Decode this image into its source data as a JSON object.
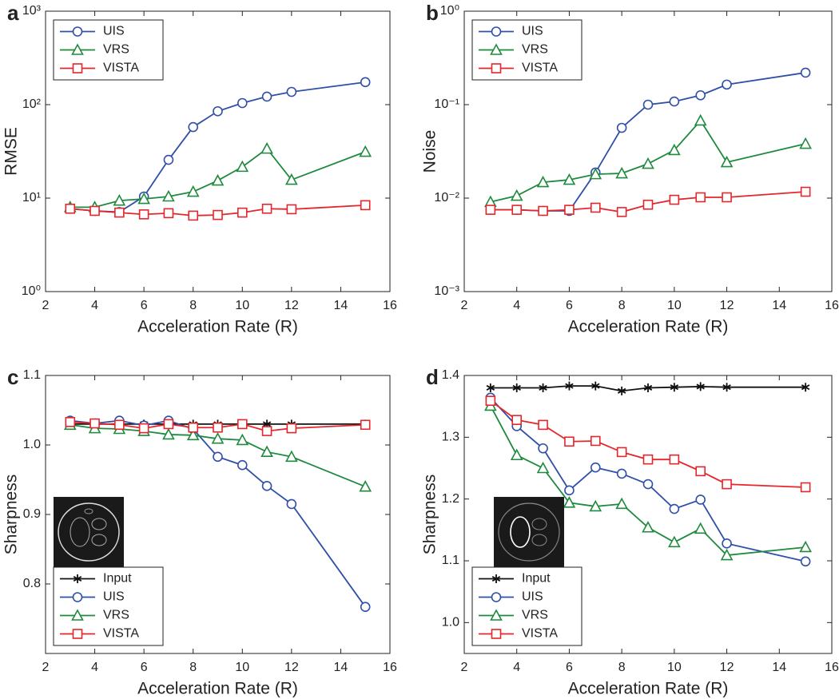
{
  "chart_data": [
    {
      "type": "line",
      "label": "a",
      "xlabel": "Acceleration Rate (R)",
      "ylabel": "RMSE",
      "log_y": true,
      "legend": "upper left",
      "x": [
        3,
        4,
        5,
        6,
        7,
        8,
        9,
        10,
        11,
        12,
        15
      ],
      "xlim": [
        2,
        16
      ],
      "xticks": [
        2,
        4,
        6,
        8,
        10,
        12,
        14,
        16
      ],
      "ylim": [
        1,
        1000
      ],
      "yticks": [
        {
          "value": 1,
          "label": "10⁰"
        },
        {
          "value": 10,
          "label": "10¹"
        },
        {
          "value": 100,
          "label": "10²"
        },
        {
          "value": 1000,
          "label": "10³"
        }
      ],
      "series": [
        {
          "name": "UIS",
          "color": "#2f4fa8",
          "marker": "circle",
          "values": [
            7.7,
            7.3,
            7.1,
            10.4,
            25.7,
            57.6,
            85,
            104,
            122,
            137,
            174
          ]
        },
        {
          "name": "VRS",
          "color": "#1e8a3e",
          "marker": "triangle",
          "values": [
            8.0,
            8.0,
            9.4,
            9.8,
            10.4,
            11.7,
            15.4,
            21.6,
            33.8,
            15.7,
            31.3
          ]
        },
        {
          "name": "VISTA",
          "color": "#e5262b",
          "marker": "square",
          "values": [
            7.7,
            7.3,
            7.0,
            6.7,
            6.9,
            6.5,
            6.6,
            7.0,
            7.7,
            7.6,
            8.4
          ]
        }
      ]
    },
    {
      "type": "line",
      "label": "b",
      "xlabel": "Acceleration Rate (R)",
      "ylabel": "Noise",
      "log_y": true,
      "legend": "upper left",
      "x": [
        3,
        4,
        5,
        6,
        7,
        8,
        9,
        10,
        11,
        12,
        15
      ],
      "xlim": [
        2,
        16
      ],
      "xticks": [
        2,
        4,
        6,
        8,
        10,
        12,
        14,
        16
      ],
      "ylim": [
        0.001,
        1
      ],
      "yticks": [
        {
          "value": 0.001,
          "label": "10⁻³"
        },
        {
          "value": 0.01,
          "label": "10⁻²"
        },
        {
          "value": 0.1,
          "label": "10⁻¹"
        },
        {
          "value": 1,
          "label": "10⁰"
        }
      ],
      "series": [
        {
          "name": "UIS",
          "color": "#2f4fa8",
          "marker": "circle",
          "values": [
            0.0075,
            0.0075,
            0.0073,
            0.0073,
            0.0188,
            0.0565,
            0.1,
            0.108,
            0.126,
            0.164,
            0.22
          ]
        },
        {
          "name": "VRS",
          "color": "#1e8a3e",
          "marker": "triangle",
          "values": [
            0.0091,
            0.0106,
            0.0148,
            0.0157,
            0.018,
            0.0184,
            0.0233,
            0.0326,
            0.0675,
            0.0242,
            0.0381
          ]
        },
        {
          "name": "VISTA",
          "color": "#e5262b",
          "marker": "square",
          "values": [
            0.0075,
            0.0075,
            0.0073,
            0.0075,
            0.0079,
            0.0071,
            0.0085,
            0.0096,
            0.0102,
            0.0102,
            0.0117
          ]
        }
      ]
    },
    {
      "type": "line",
      "label": "c",
      "xlabel": "Acceleration Rate (R)",
      "ylabel": "Sharpness",
      "log_y": false,
      "legend": "lower left",
      "x": [
        3,
        4,
        5,
        6,
        7,
        8,
        9,
        10,
        11,
        12,
        15
      ],
      "xlim": [
        2,
        16
      ],
      "xticks": [
        2,
        4,
        6,
        8,
        10,
        12,
        14,
        16
      ],
      "ylim": [
        0.7,
        1.1
      ],
      "yticks": [
        0.8,
        0.9,
        {
          "value": 1.0,
          "label": "1.0"
        },
        1.1
      ],
      "series": [
        {
          "name": "Input",
          "color": "#111111",
          "marker": "star",
          "values": [
            1.03,
            1.03,
            1.03,
            1.03,
            1.03,
            1.03,
            1.03,
            1.03,
            1.03,
            1.03,
            1.03
          ]
        },
        {
          "name": "UIS",
          "color": "#2f4fa8",
          "marker": "circle",
          "values": [
            1.035,
            1.031,
            1.035,
            1.028,
            1.035,
            1.023,
            0.983,
            0.971,
            0.941,
            0.915,
            0.767
          ]
        },
        {
          "name": "VRS",
          "color": "#1e8a3e",
          "marker": "triangle",
          "values": [
            1.029,
            1.024,
            1.023,
            1.02,
            1.015,
            1.014,
            1.009,
            1.007,
            0.99,
            0.983,
            0.94
          ]
        },
        {
          "name": "VISTA",
          "color": "#e5262b",
          "marker": "square",
          "values": [
            1.033,
            1.031,
            1.029,
            1.024,
            1.03,
            1.025,
            1.025,
            1.03,
            1.02,
            1.024,
            1.029
          ]
        }
      ]
    },
    {
      "type": "line",
      "label": "d",
      "xlabel": "Acceleration Rate (R)",
      "ylabel": "Sharpness",
      "log_y": false,
      "legend": "lower left",
      "x": [
        3,
        4,
        5,
        6,
        7,
        8,
        9,
        10,
        11,
        12,
        15
      ],
      "xlim": [
        2,
        16
      ],
      "xticks": [
        2,
        4,
        6,
        8,
        10,
        12,
        14,
        16
      ],
      "ylim": [
        0.95,
        1.4
      ],
      "yticks": [
        {
          "value": 1.0,
          "label": "1.0"
        },
        1.1,
        1.2,
        1.3,
        1.4
      ],
      "series": [
        {
          "name": "Input",
          "color": "#111111",
          "marker": "star",
          "values": [
            1.38,
            1.38,
            1.38,
            1.383,
            1.383,
            1.375,
            1.38,
            1.381,
            1.382,
            1.381,
            1.381
          ]
        },
        {
          "name": "UIS",
          "color": "#2f4fa8",
          "marker": "circle",
          "values": [
            1.364,
            1.318,
            1.282,
            1.214,
            1.251,
            1.241,
            1.224,
            1.184,
            1.199,
            1.128,
            1.099
          ]
        },
        {
          "name": "VRS",
          "color": "#1e8a3e",
          "marker": "triangle",
          "values": [
            1.351,
            1.271,
            1.25,
            1.194,
            1.188,
            1.192,
            1.154,
            1.13,
            1.152,
            1.109,
            1.122
          ]
        },
        {
          "name": "VISTA",
          "color": "#e5262b",
          "marker": "square",
          "values": [
            1.359,
            1.328,
            1.32,
            1.293,
            1.294,
            1.276,
            1.264,
            1.264,
            1.245,
            1.224,
            1.219
          ]
        }
      ]
    }
  ]
}
